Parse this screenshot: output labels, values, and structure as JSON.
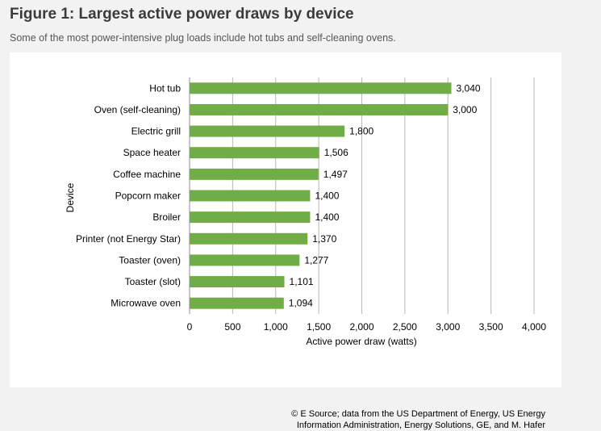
{
  "figure": {
    "title": "Figure 1: Largest active power draws by device",
    "subtitle": "Some of the most power-intensive plug loads include hot tubs and self-cleaning ovens.",
    "source_line1": "© E Source; data from the US Department of Energy, US Energy",
    "source_line2": "Information Administration, Energy Solutions, GE, and M. Hafer"
  },
  "colors": {
    "bar": "#70ad47",
    "grid": "#b7b7b7",
    "panel": "#ffffff",
    "background": "#f2f2f2"
  },
  "chart_data": {
    "type": "bar",
    "orientation": "horizontal",
    "categories": [
      "Hot tub",
      "Oven (self-cleaning)",
      "Electric grill",
      "Space heater",
      "Coffee machine",
      "Popcorn maker",
      "Broiler",
      "Printer (not Energy Star)",
      "Toaster (oven)",
      "Toaster (slot)",
      "Microwave oven"
    ],
    "values": [
      3040,
      3000,
      1800,
      1506,
      1497,
      1400,
      1400,
      1370,
      1277,
      1101,
      1094
    ],
    "data_labels": [
      "3,040",
      "3,000",
      "1,800",
      "1,506",
      "1,497",
      "1,400",
      "1,400",
      "1,370",
      "1,277",
      "1,101",
      "1,094"
    ],
    "xlabel": "Active power draw (watts)",
    "ylabel": "Device",
    "xlim": [
      0,
      4000
    ],
    "xticks": [
      0,
      500,
      1000,
      1500,
      2000,
      2500,
      3000,
      3500,
      4000
    ],
    "xtick_labels": [
      "0",
      "500",
      "1,000",
      "1,500",
      "2,000",
      "2,500",
      "3,000",
      "3,500",
      "4,000"
    ],
    "grid": "vertical",
    "legend": "none"
  }
}
